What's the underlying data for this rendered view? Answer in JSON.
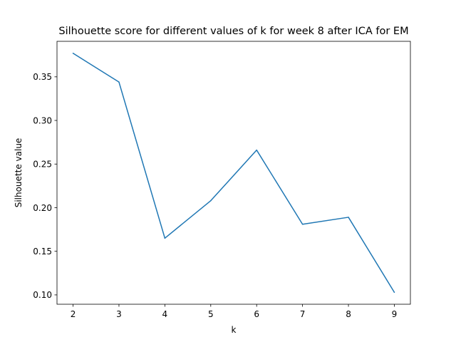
{
  "chart_data": {
    "type": "line",
    "title": "Silhouette score for different values of k for week 8 after ICA for EM",
    "xlabel": "k",
    "ylabel": "Silhouette value",
    "x": [
      2,
      3,
      4,
      5,
      6,
      7,
      8,
      9
    ],
    "series": [
      {
        "values": [
          0.377,
          0.344,
          0.165,
          0.208,
          0.266,
          0.181,
          0.189,
          0.103
        ],
        "color": "#1f77b4"
      }
    ],
    "xticks": [
      "2",
      "3",
      "4",
      "5",
      "6",
      "7",
      "8",
      "9"
    ],
    "yticks": [
      "0.10",
      "0.15",
      "0.20",
      "0.25",
      "0.30",
      "0.35"
    ],
    "xlim": [
      1.65,
      9.35
    ],
    "ylim": [
      0.0893,
      0.3907
    ],
    "grid": false,
    "legend": "none"
  }
}
